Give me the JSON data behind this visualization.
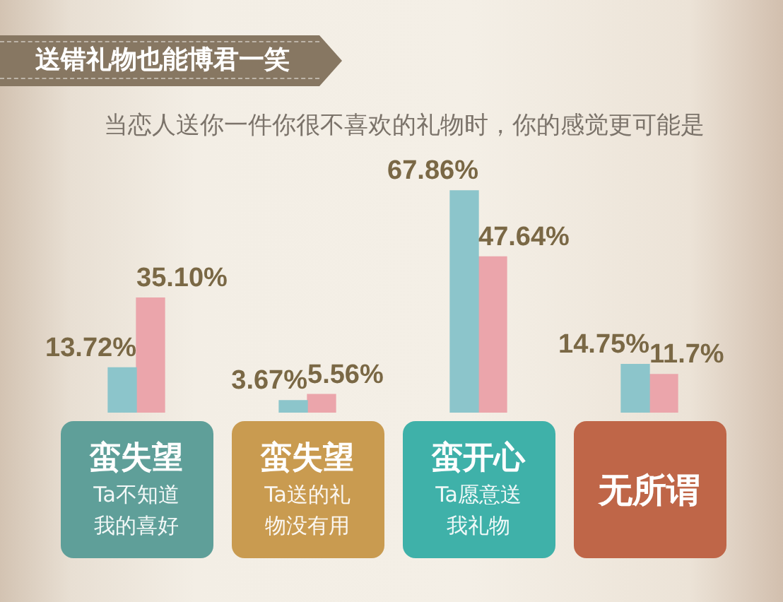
{
  "chart_data": {
    "type": "bar",
    "title": "送错礼物也能博君一笑",
    "subtitle": "当恋人送你一件你很不喜欢的礼物时，你的感觉更可能是",
    "categories": [
      "蛮失望\nTa不知道我的喜好",
      "蛮失望\nTa送的礼物没有用",
      "蛮开心\nTa愿意送我礼物",
      "无所谓"
    ],
    "series": [
      {
        "color": "#8cc5cb",
        "values": [
          13.72,
          3.67,
          67.86,
          14.75
        ],
        "value_labels": [
          "13.72%",
          "3.67%",
          "67.86%",
          "14.75%"
        ]
      },
      {
        "color": "#eba5ab",
        "values": [
          35.1,
          5.56,
          47.64,
          11.7
        ],
        "value_labels": [
          "35.10%",
          "5.56%",
          "47.64%",
          "11.7%"
        ]
      }
    ]
  }
}
